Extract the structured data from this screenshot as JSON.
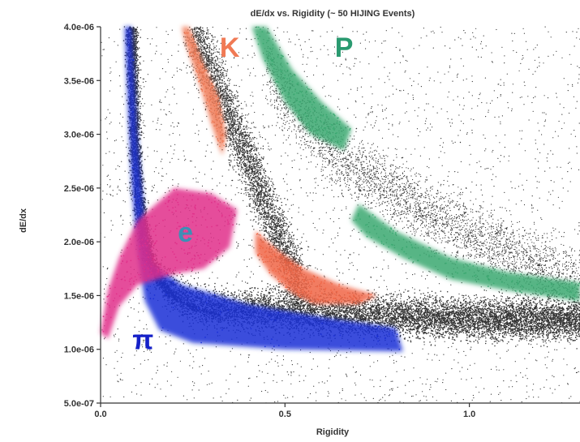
{
  "chart_data": {
    "type": "scatter",
    "title": "dE/dx vs. Rigidity (~ 50 HIJING Events)",
    "xlabel": "Rigidity",
    "ylabel": "dE/dx",
    "xlim": [
      0.0,
      1.3
    ],
    "ylim": [
      5e-07,
      4e-06
    ],
    "x_tick_labels": [
      "0.0",
      "0.5",
      "1.0"
    ],
    "x_ticks": [
      0.0,
      0.5,
      1.0
    ],
    "y_tick_labels": [
      "5.0e-07",
      "1.0e-06",
      "1.5e-06",
      "2.0e-06",
      "2.5e-06",
      "3.0e-06",
      "3.5e-06",
      "4.0e-06"
    ],
    "y_ticks": [
      5e-07,
      1e-06,
      1.5e-06,
      2e-06,
      2.5e-06,
      3e-06,
      3.5e-06,
      4e-06
    ],
    "grid": false,
    "legend": "none",
    "point_color": "#333333",
    "bands": [
      {
        "label": "π",
        "color": "#1a2fd6",
        "label_color": "#1520c8",
        "label_at": [
          0.115,
          1e-06
        ],
        "outline": [
          [
            0.065,
            4e-06
          ],
          [
            0.075,
            3.2e-06
          ],
          [
            0.085,
            2.5e-06
          ],
          [
            0.1,
            1.9e-06
          ],
          [
            0.12,
            1.45e-06
          ],
          [
            0.16,
            1.18e-06
          ],
          [
            0.25,
            1.06e-06
          ],
          [
            0.5,
            1e-06
          ],
          [
            0.82,
            9.8e-07
          ],
          [
            0.8,
            1.2e-06
          ],
          [
            0.6,
            1.3e-06
          ],
          [
            0.4,
            1.42e-06
          ],
          [
            0.22,
            1.6e-06
          ],
          [
            0.14,
            1.8e-06
          ],
          [
            0.12,
            2.2e-06
          ],
          [
            0.1,
            3e-06
          ],
          [
            0.085,
            4e-06
          ]
        ]
      },
      {
        "label": "e",
        "color": "#e0308a",
        "label_color": "#3d8fb5",
        "label_at": [
          0.23,
          2e-06
        ],
        "outline": [
          [
            0.0,
            1.15e-06
          ],
          [
            0.02,
            1.55e-06
          ],
          [
            0.05,
            1.85e-06
          ],
          [
            0.1,
            2.2e-06
          ],
          [
            0.2,
            2.5e-06
          ],
          [
            0.3,
            2.45e-06
          ],
          [
            0.37,
            2.3e-06
          ],
          [
            0.35,
            1.95e-06
          ],
          [
            0.28,
            1.75e-06
          ],
          [
            0.2,
            1.7e-06
          ],
          [
            0.1,
            1.6e-06
          ],
          [
            0.05,
            1.4e-06
          ],
          [
            0.02,
            1.1e-06
          ]
        ]
      },
      {
        "label": "K",
        "color": "#f07a55",
        "label_color": "#f07a55",
        "label_at": [
          0.35,
          3.72e-06
        ],
        "outline": [
          [
            0.24,
            4e-06
          ],
          [
            0.28,
            3.65e-06
          ],
          [
            0.32,
            3.35e-06
          ],
          [
            0.34,
            3e-06
          ],
          [
            0.33,
            2.8e-06
          ],
          [
            0.3,
            3.1e-06
          ],
          [
            0.27,
            3.45e-06
          ],
          [
            0.23,
            3.85e-06
          ],
          [
            0.22,
            4e-06
          ]
        ]
      },
      {
        "label": "K",
        "color": "#f06545",
        "label_color": "#f06545",
        "outline": [
          [
            0.42,
            2.1e-06
          ],
          [
            0.47,
            1.95e-06
          ],
          [
            0.55,
            1.75e-06
          ],
          [
            0.65,
            1.6e-06
          ],
          [
            0.75,
            1.5e-06
          ],
          [
            0.7,
            1.42e-06
          ],
          [
            0.58,
            1.42e-06
          ],
          [
            0.52,
            1.52e-06
          ],
          [
            0.46,
            1.7e-06
          ],
          [
            0.42,
            1.9e-06
          ]
        ]
      },
      {
        "label": "P",
        "color": "#3aa870",
        "label_color": "#2a9a70",
        "label_at": [
          0.66,
          3.72e-06
        ],
        "outline": [
          [
            0.45,
            4e-06
          ],
          [
            0.52,
            3.6e-06
          ],
          [
            0.6,
            3.3e-06
          ],
          [
            0.68,
            3.05e-06
          ],
          [
            0.66,
            2.85e-06
          ],
          [
            0.57,
            3e-06
          ],
          [
            0.5,
            3.3e-06
          ],
          [
            0.44,
            3.7e-06
          ],
          [
            0.41,
            4e-06
          ]
        ]
      },
      {
        "label": "P",
        "color": "#3aa870",
        "label_color": "#2a9a70",
        "outline": [
          [
            0.7,
            2.35e-06
          ],
          [
            0.8,
            2.1e-06
          ],
          [
            0.95,
            1.85e-06
          ],
          [
            1.1,
            1.72e-06
          ],
          [
            1.3,
            1.62e-06
          ],
          [
            1.3,
            1.45e-06
          ],
          [
            1.1,
            1.55e-06
          ],
          [
            0.95,
            1.65e-06
          ],
          [
            0.82,
            1.85e-06
          ],
          [
            0.72,
            2.05e-06
          ],
          [
            0.68,
            2.2e-06
          ]
        ]
      }
    ]
  }
}
